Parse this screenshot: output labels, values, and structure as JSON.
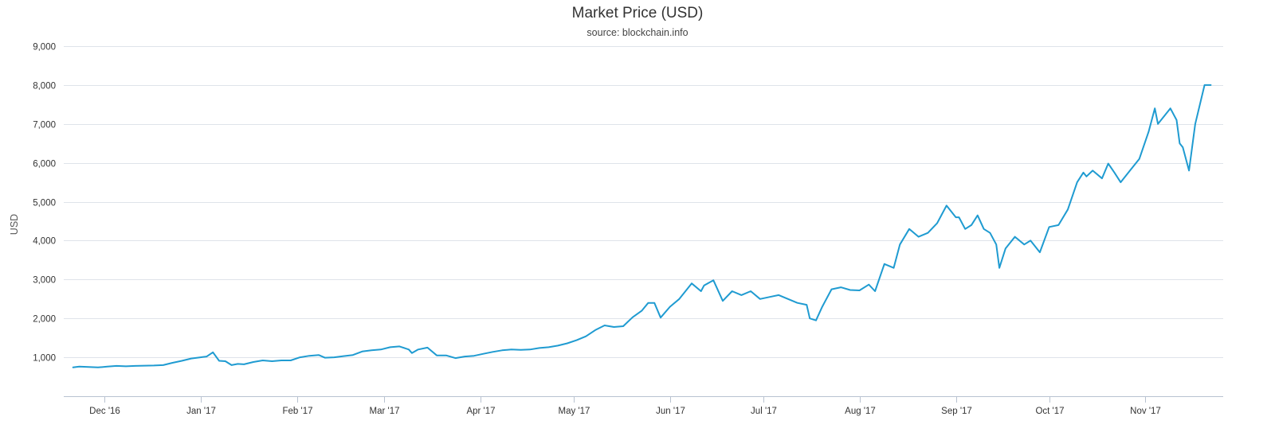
{
  "chart_data": {
    "type": "line",
    "title": "Market Price (USD)",
    "subtitle": "source: blockchain.info",
    "ylabel": "USD",
    "xlabel": "",
    "ylim": [
      0,
      9000
    ],
    "xlim": [
      "2016-11-18",
      "2017-11-26"
    ],
    "yticks": [
      1000,
      2000,
      3000,
      4000,
      5000,
      6000,
      7000,
      8000,
      9000
    ],
    "ytick_labels": [
      "1,000",
      "2,000",
      "3,000",
      "4,000",
      "5,000",
      "6,000",
      "7,000",
      "8,000",
      "9,000"
    ],
    "xticks": [
      "2016-12-01",
      "2017-01-01",
      "2017-02-01",
      "2017-03-01",
      "2017-04-01",
      "2017-05-01",
      "2017-06-01",
      "2017-07-01",
      "2017-08-01",
      "2017-09-01",
      "2017-10-01",
      "2017-11-01"
    ],
    "xtick_labels": [
      "Dec '16",
      "Jan '17",
      "Feb '17",
      "Mar '17",
      "Apr '17",
      "May '17",
      "Jun '17",
      "Jul '17",
      "Aug '17",
      "Sep '17",
      "Oct '17",
      "Nov '17"
    ],
    "grid": true,
    "legend": "none",
    "colors": {
      "series": "#1f9bd1",
      "grid": "#dfe3ea",
      "axis": "#b8c2d0",
      "text": "#333333"
    },
    "series": [
      {
        "x": [
          "2016-11-21",
          "2016-11-23",
          "2016-11-26",
          "2016-11-29",
          "2016-12-02",
          "2016-12-05",
          "2016-12-08",
          "2016-12-11",
          "2016-12-14",
          "2016-12-17",
          "2016-12-20",
          "2016-12-23",
          "2016-12-26",
          "2016-12-29",
          "2017-01-01",
          "2017-01-03",
          "2017-01-05",
          "2017-01-07",
          "2017-01-09",
          "2017-01-11",
          "2017-01-13",
          "2017-01-15",
          "2017-01-18",
          "2017-01-21",
          "2017-01-24",
          "2017-01-27",
          "2017-01-30",
          "2017-02-02",
          "2017-02-05",
          "2017-02-08",
          "2017-02-10",
          "2017-02-13",
          "2017-02-16",
          "2017-02-19",
          "2017-02-22",
          "2017-02-25",
          "2017-02-28",
          "2017-03-03",
          "2017-03-06",
          "2017-03-09",
          "2017-03-10",
          "2017-03-12",
          "2017-03-15",
          "2017-03-18",
          "2017-03-21",
          "2017-03-24",
          "2017-03-27",
          "2017-03-30",
          "2017-04-02",
          "2017-04-05",
          "2017-04-08",
          "2017-04-11",
          "2017-04-14",
          "2017-04-17",
          "2017-04-20",
          "2017-04-23",
          "2017-04-26",
          "2017-04-29",
          "2017-05-02",
          "2017-05-05",
          "2017-05-08",
          "2017-05-11",
          "2017-05-14",
          "2017-05-17",
          "2017-05-20",
          "2017-05-23",
          "2017-05-25",
          "2017-05-27",
          "2017-05-29",
          "2017-06-01",
          "2017-06-04",
          "2017-06-06",
          "2017-06-08",
          "2017-06-11",
          "2017-06-12",
          "2017-06-15",
          "2017-06-18",
          "2017-06-21",
          "2017-06-24",
          "2017-06-27",
          "2017-06-30",
          "2017-07-03",
          "2017-07-06",
          "2017-07-09",
          "2017-07-12",
          "2017-07-15",
          "2017-07-16",
          "2017-07-18",
          "2017-07-20",
          "2017-07-23",
          "2017-07-26",
          "2017-07-29",
          "2017-08-01",
          "2017-08-04",
          "2017-08-06",
          "2017-08-09",
          "2017-08-12",
          "2017-08-14",
          "2017-08-17",
          "2017-08-20",
          "2017-08-23",
          "2017-08-26",
          "2017-08-29",
          "2017-09-01",
          "2017-09-02",
          "2017-09-04",
          "2017-09-06",
          "2017-09-08",
          "2017-09-10",
          "2017-09-12",
          "2017-09-14",
          "2017-09-15",
          "2017-09-17",
          "2017-09-20",
          "2017-09-23",
          "2017-09-25",
          "2017-09-28",
          "2017-10-01",
          "2017-10-04",
          "2017-10-07",
          "2017-10-10",
          "2017-10-12",
          "2017-10-13",
          "2017-10-15",
          "2017-10-18",
          "2017-10-20",
          "2017-10-22",
          "2017-10-24",
          "2017-10-27",
          "2017-10-30",
          "2017-11-02",
          "2017-11-04",
          "2017-11-05",
          "2017-11-07",
          "2017-11-09",
          "2017-11-11",
          "2017-11-12",
          "2017-11-13",
          "2017-11-15",
          "2017-11-17",
          "2017-11-20",
          "2017-11-22"
        ],
        "values": [
          740,
          760,
          750,
          740,
          760,
          780,
          770,
          780,
          785,
          790,
          800,
          860,
          910,
          970,
          1000,
          1020,
          1130,
          910,
          900,
          800,
          830,
          820,
          880,
          920,
          900,
          920,
          920,
          1000,
          1040,
          1060,
          990,
          1000,
          1030,
          1060,
          1150,
          1180,
          1200,
          1260,
          1280,
          1200,
          1110,
          1200,
          1250,
          1050,
          1050,
          980,
          1020,
          1040,
          1090,
          1140,
          1180,
          1200,
          1190,
          1200,
          1240,
          1260,
          1300,
          1360,
          1440,
          1540,
          1700,
          1820,
          1780,
          1800,
          2030,
          2200,
          2400,
          2400,
          2020,
          2300,
          2500,
          2700,
          2900,
          2700,
          2850,
          2980,
          2450,
          2700,
          2600,
          2700,
          2500,
          2550,
          2600,
          2500,
          2400,
          2350,
          2000,
          1950,
          2300,
          2750,
          2800,
          2730,
          2720,
          2870,
          2700,
          3400,
          3300,
          3900,
          4300,
          4100,
          4200,
          4450,
          4900,
          4600,
          4600,
          4300,
          4400,
          4650,
          4300,
          4200,
          3900,
          3300,
          3800,
          4100,
          3900,
          4000,
          3700,
          4350,
          4400,
          4800,
          5500,
          5750,
          5650,
          5800,
          5600,
          5980,
          5750,
          5500,
          5800,
          6100,
          6800,
          7400,
          7000,
          7200,
          7400,
          7100,
          6500,
          6400,
          5800,
          7000,
          8000,
          8000
        ]
      }
    ]
  }
}
